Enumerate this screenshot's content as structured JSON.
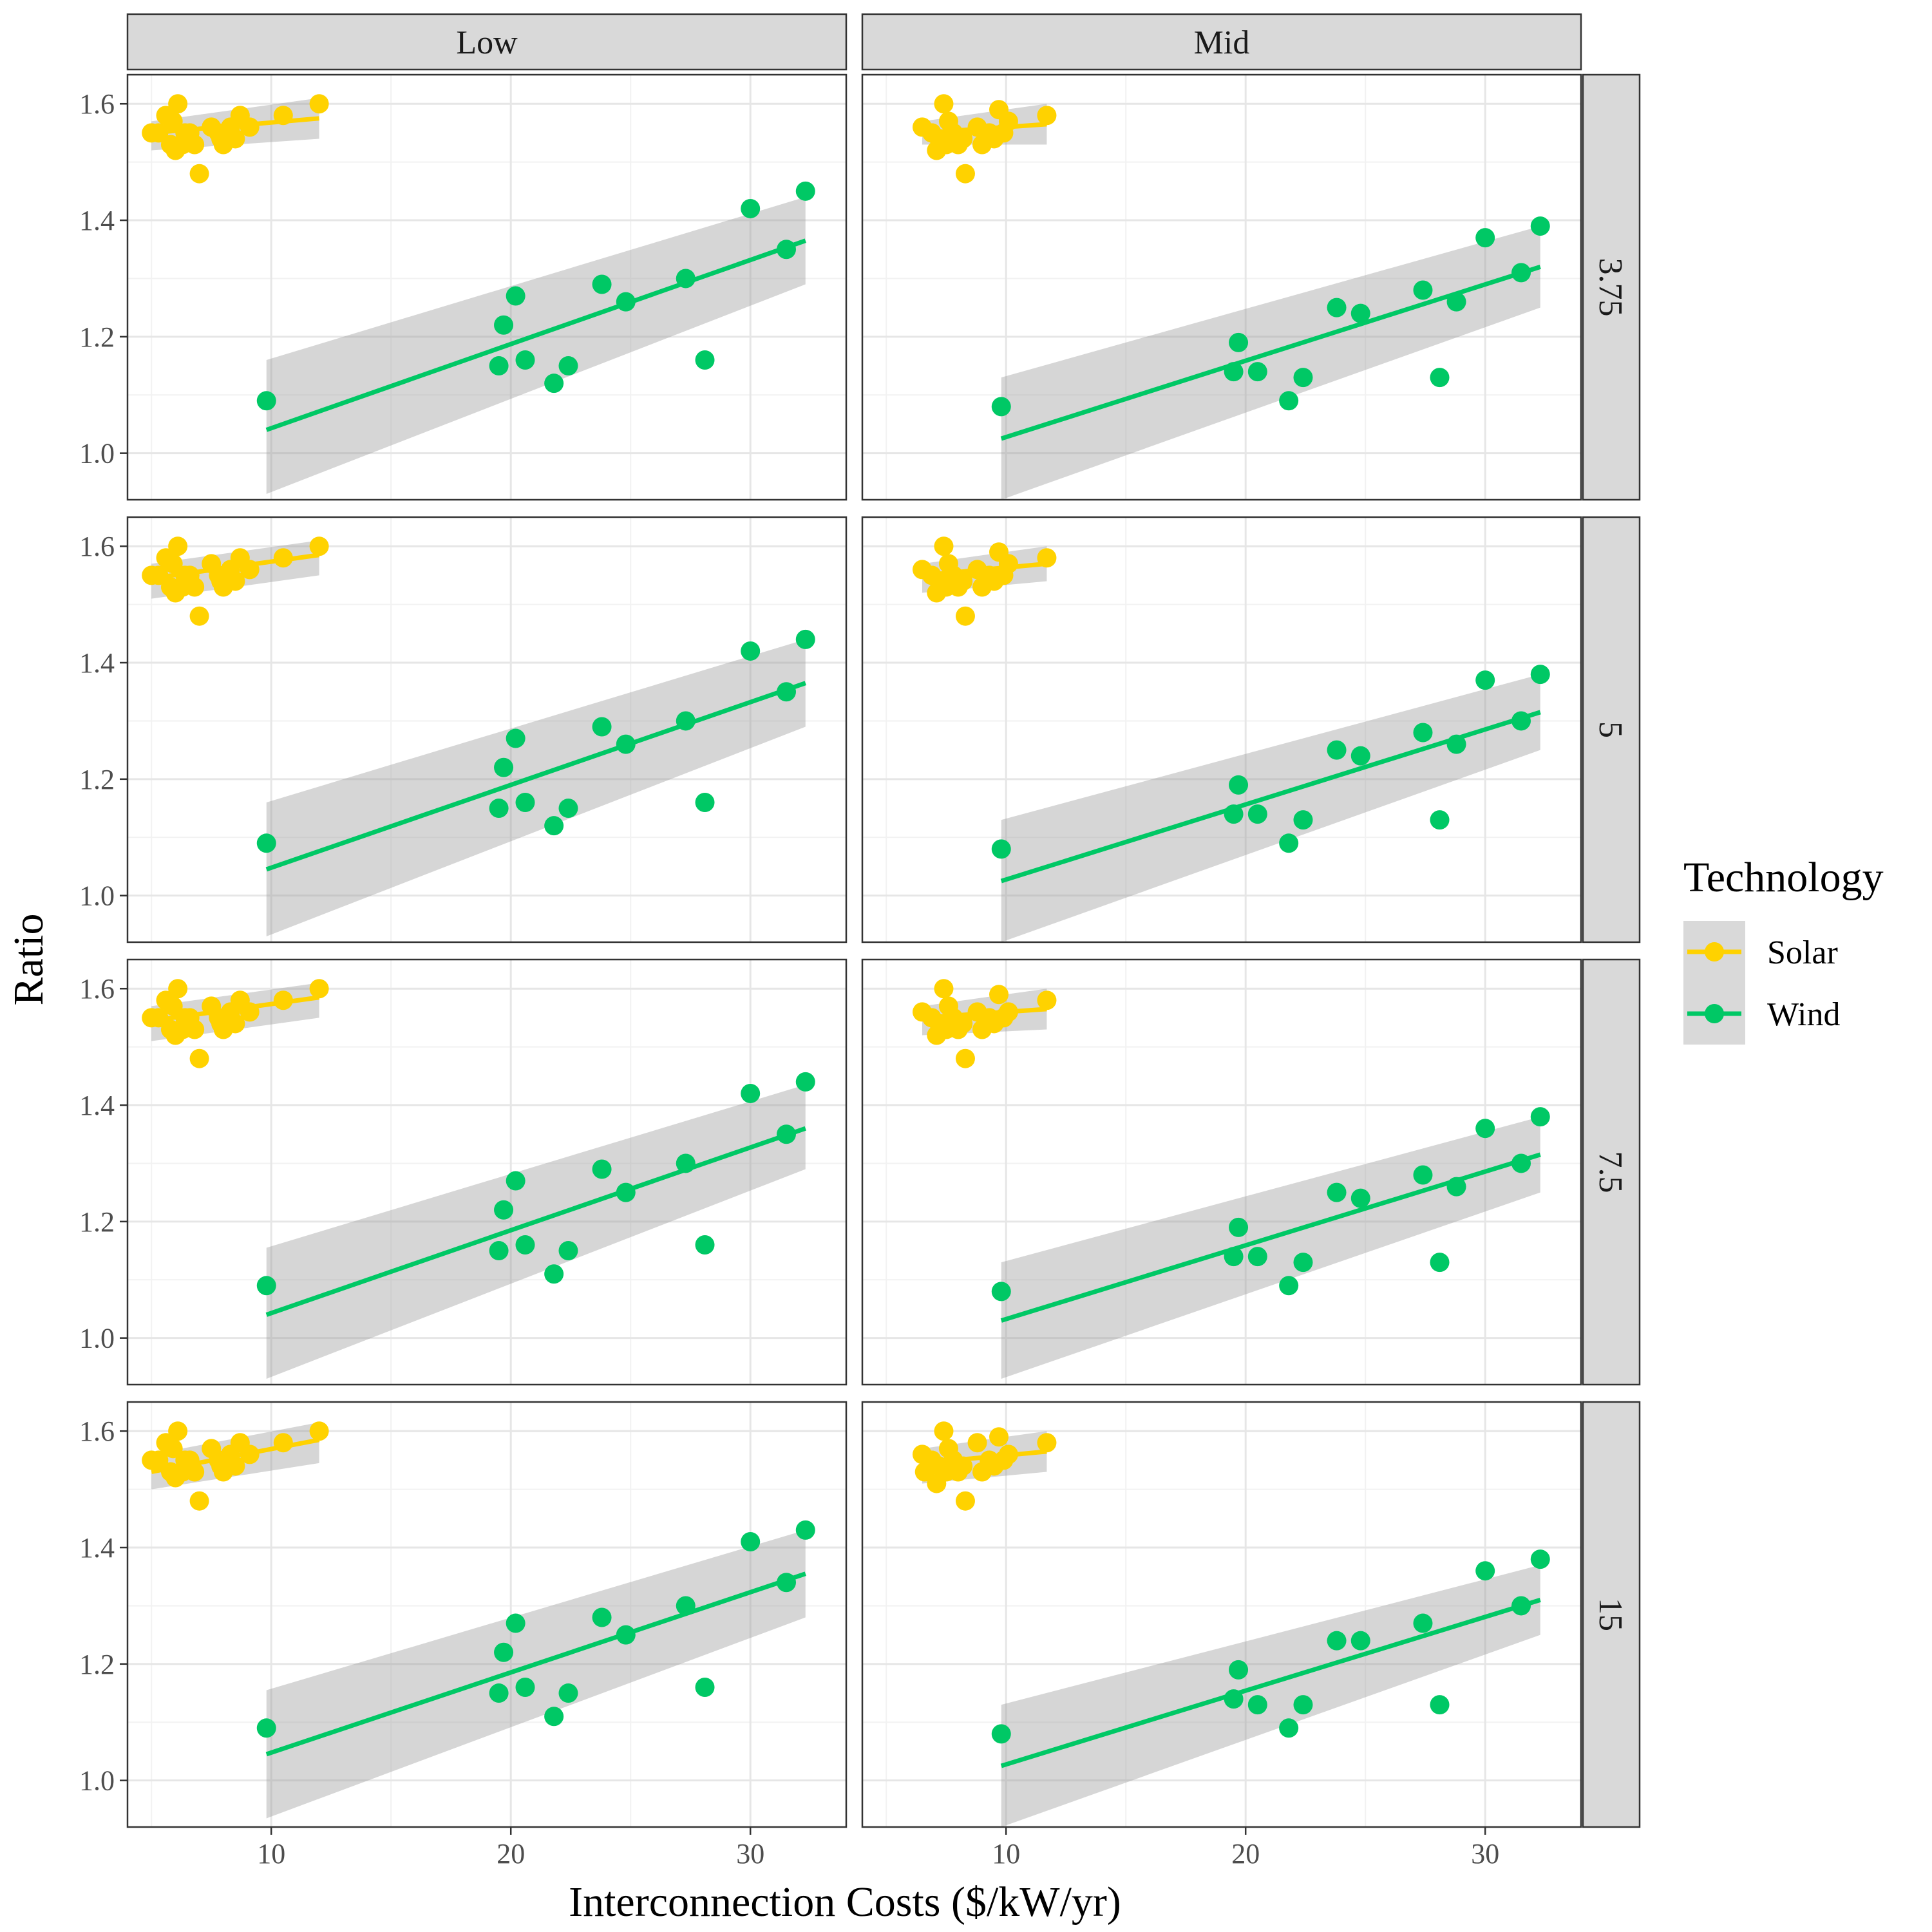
{
  "chart_data": {
    "type": "scatter",
    "xlabel": "Interconnection Costs ($/kW/yr)",
    "ylabel": "Ratio",
    "xlim": [
      4,
      34
    ],
    "ylim": [
      0.92,
      1.65
    ],
    "x_ticks": [
      "10",
      "20",
      "30"
    ],
    "y_ticks": [
      "1.0",
      "1.2",
      "1.4",
      "1.6"
    ],
    "grid": true,
    "legend": {
      "title": "Technology",
      "position": "right",
      "entries": [
        {
          "name": "Solar",
          "color": "#FFD200"
        },
        {
          "name": "Wind",
          "color": "#00C865"
        }
      ]
    },
    "facet_columns": [
      "Low",
      "Mid"
    ],
    "facet_rows": [
      "3.75",
      "5",
      "7.5",
      "15"
    ],
    "panels": [
      {
        "col": "Low",
        "row": "3.75",
        "solar": {
          "x": [
            5.0,
            5.3,
            5.6,
            5.9,
            6.1,
            6.3,
            6.6,
            7.0,
            7.5,
            7.9,
            8.3,
            8.7,
            9.1,
            10.5,
            12.0,
            5.8,
            6.0,
            6.4,
            6.8,
            7.8,
            8.0,
            8.5
          ],
          "y": [
            1.55,
            1.55,
            1.58,
            1.57,
            1.6,
            1.53,
            1.55,
            1.48,
            1.56,
            1.54,
            1.56,
            1.58,
            1.56,
            1.58,
            1.6,
            1.53,
            1.52,
            1.55,
            1.53,
            1.55,
            1.53,
            1.54
          ]
        },
        "solar_fit": {
          "x0": 5.0,
          "y0": 1.55,
          "x1": 12.0,
          "y1": 1.575,
          "ci_lo_start": 1.52,
          "ci_hi_start": 1.57,
          "ci_lo_end": 1.54,
          "ci_hi_end": 1.61
        },
        "wind": {
          "x": [
            9.8,
            19.5,
            19.7,
            20.2,
            20.6,
            21.8,
            22.4,
            23.8,
            24.8,
            27.3,
            28.1,
            30.0,
            31.5,
            32.3
          ],
          "y": [
            1.09,
            1.15,
            1.22,
            1.27,
            1.16,
            1.12,
            1.15,
            1.29,
            1.26,
            1.3,
            1.16,
            1.42,
            1.35,
            1.45
          ]
        },
        "wind_fit": {
          "x0": 9.8,
          "y0": 1.04,
          "x1": 32.3,
          "y1": 1.365,
          "ci_lo_start": 0.93,
          "ci_hi_start": 1.16,
          "ci_lo_end": 1.29,
          "ci_hi_end": 1.44
        }
      },
      {
        "col": "Mid",
        "row": "3.75",
        "solar": {
          "x": [
            6.5,
            6.9,
            7.2,
            7.4,
            7.6,
            7.8,
            8.0,
            8.3,
            8.8,
            9.0,
            9.3,
            9.7,
            10.1,
            11.7,
            7.1,
            7.5,
            8.2,
            9.5,
            9.9
          ],
          "y": [
            1.56,
            1.55,
            1.54,
            1.6,
            1.57,
            1.55,
            1.53,
            1.48,
            1.56,
            1.53,
            1.55,
            1.59,
            1.57,
            1.58,
            1.52,
            1.53,
            1.54,
            1.54,
            1.55
          ]
        },
        "solar_fit": {
          "x0": 6.5,
          "y0": 1.55,
          "x1": 11.7,
          "y1": 1.565,
          "ci_lo_start": 1.53,
          "ci_hi_start": 1.57,
          "ci_lo_end": 1.53,
          "ci_hi_end": 1.6
        },
        "wind": {
          "x": [
            9.8,
            19.5,
            19.7,
            20.5,
            21.8,
            22.4,
            23.8,
            24.8,
            27.4,
            28.1,
            28.8,
            30.0,
            31.5,
            32.3
          ],
          "y": [
            1.08,
            1.14,
            1.19,
            1.14,
            1.09,
            1.13,
            1.25,
            1.24,
            1.28,
            1.13,
            1.26,
            1.37,
            1.31,
            1.39
          ]
        },
        "wind_fit": {
          "x0": 9.8,
          "y0": 1.025,
          "x1": 32.3,
          "y1": 1.32,
          "ci_lo_start": 0.92,
          "ci_hi_start": 1.13,
          "ci_lo_end": 1.25,
          "ci_hi_end": 1.39
        }
      },
      {
        "col": "Low",
        "row": "5",
        "solar": {
          "x": [
            5.0,
            5.3,
            5.6,
            5.9,
            6.1,
            6.3,
            6.6,
            7.0,
            7.5,
            7.9,
            8.3,
            8.7,
            9.1,
            10.5,
            12.0,
            5.8,
            6.0,
            6.4,
            6.8,
            7.8,
            8.0,
            8.5
          ],
          "y": [
            1.55,
            1.55,
            1.58,
            1.57,
            1.6,
            1.53,
            1.55,
            1.48,
            1.57,
            1.54,
            1.56,
            1.58,
            1.56,
            1.58,
            1.6,
            1.53,
            1.52,
            1.55,
            1.53,
            1.55,
            1.53,
            1.54
          ]
        },
        "solar_fit": {
          "x0": 5.0,
          "y0": 1.545,
          "x1": 12.0,
          "y1": 1.585,
          "ci_lo_start": 1.51,
          "ci_hi_start": 1.57,
          "ci_lo_end": 1.55,
          "ci_hi_end": 1.61
        },
        "wind": {
          "x": [
            9.8,
            19.5,
            19.7,
            20.2,
            20.6,
            21.8,
            22.4,
            23.8,
            24.8,
            27.3,
            28.1,
            30.0,
            31.5,
            32.3
          ],
          "y": [
            1.09,
            1.15,
            1.22,
            1.27,
            1.16,
            1.12,
            1.15,
            1.29,
            1.26,
            1.3,
            1.16,
            1.42,
            1.35,
            1.44
          ]
        },
        "wind_fit": {
          "x0": 9.8,
          "y0": 1.045,
          "x1": 32.3,
          "y1": 1.365,
          "ci_lo_start": 0.93,
          "ci_hi_start": 1.16,
          "ci_lo_end": 1.29,
          "ci_hi_end": 1.44
        }
      },
      {
        "col": "Mid",
        "row": "5",
        "solar": {
          "x": [
            6.5,
            6.9,
            7.2,
            7.4,
            7.6,
            7.8,
            8.0,
            8.3,
            8.8,
            9.0,
            9.3,
            9.7,
            10.1,
            11.7,
            7.1,
            7.5,
            8.2,
            9.5,
            9.9
          ],
          "y": [
            1.56,
            1.55,
            1.54,
            1.6,
            1.57,
            1.55,
            1.53,
            1.48,
            1.56,
            1.53,
            1.55,
            1.59,
            1.57,
            1.58,
            1.52,
            1.53,
            1.54,
            1.54,
            1.55
          ]
        },
        "solar_fit": {
          "x0": 6.5,
          "y0": 1.55,
          "x1": 11.7,
          "y1": 1.57,
          "ci_lo_start": 1.52,
          "ci_hi_start": 1.57,
          "ci_lo_end": 1.54,
          "ci_hi_end": 1.6
        },
        "wind": {
          "x": [
            9.8,
            19.5,
            19.7,
            20.5,
            21.8,
            22.4,
            23.8,
            24.8,
            27.4,
            28.1,
            28.8,
            30.0,
            31.5,
            32.3
          ],
          "y": [
            1.08,
            1.14,
            1.19,
            1.14,
            1.09,
            1.13,
            1.25,
            1.24,
            1.28,
            1.13,
            1.26,
            1.37,
            1.3,
            1.38
          ]
        },
        "wind_fit": {
          "x0": 9.8,
          "y0": 1.025,
          "x1": 32.3,
          "y1": 1.315,
          "ci_lo_start": 0.92,
          "ci_hi_start": 1.13,
          "ci_lo_end": 1.25,
          "ci_hi_end": 1.38
        }
      },
      {
        "col": "Low",
        "row": "7.5",
        "solar": {
          "x": [
            5.0,
            5.3,
            5.6,
            5.9,
            6.1,
            6.3,
            6.6,
            7.0,
            7.5,
            7.9,
            8.3,
            8.7,
            9.1,
            10.5,
            12.0,
            5.8,
            6.0,
            6.4,
            6.8,
            7.8,
            8.0,
            8.5
          ],
          "y": [
            1.55,
            1.55,
            1.58,
            1.57,
            1.6,
            1.53,
            1.55,
            1.48,
            1.57,
            1.54,
            1.56,
            1.58,
            1.56,
            1.58,
            1.6,
            1.53,
            1.52,
            1.55,
            1.53,
            1.55,
            1.53,
            1.54
          ]
        },
        "solar_fit": {
          "x0": 5.0,
          "y0": 1.545,
          "x1": 12.0,
          "y1": 1.585,
          "ci_lo_start": 1.51,
          "ci_hi_start": 1.57,
          "ci_lo_end": 1.55,
          "ci_hi_end": 1.61
        },
        "wind": {
          "x": [
            9.8,
            19.5,
            19.7,
            20.2,
            20.6,
            21.8,
            22.4,
            23.8,
            24.8,
            27.3,
            28.1,
            30.0,
            31.5,
            32.3
          ],
          "y": [
            1.09,
            1.15,
            1.22,
            1.27,
            1.16,
            1.11,
            1.15,
            1.29,
            1.25,
            1.3,
            1.16,
            1.42,
            1.35,
            1.44
          ]
        },
        "wind_fit": {
          "x0": 9.8,
          "y0": 1.04,
          "x1": 32.3,
          "y1": 1.36,
          "ci_lo_start": 0.93,
          "ci_hi_start": 1.155,
          "ci_lo_end": 1.29,
          "ci_hi_end": 1.435
        }
      },
      {
        "col": "Mid",
        "row": "7.5",
        "solar": {
          "x": [
            6.5,
            6.9,
            7.2,
            7.4,
            7.6,
            7.8,
            8.0,
            8.3,
            8.8,
            9.0,
            9.3,
            9.7,
            10.1,
            11.7,
            7.1,
            7.5,
            8.2,
            9.5,
            9.9
          ],
          "y": [
            1.56,
            1.55,
            1.54,
            1.6,
            1.57,
            1.55,
            1.53,
            1.48,
            1.56,
            1.53,
            1.55,
            1.59,
            1.56,
            1.58,
            1.52,
            1.53,
            1.54,
            1.54,
            1.55
          ]
        },
        "solar_fit": {
          "x0": 6.5,
          "y0": 1.55,
          "x1": 11.7,
          "y1": 1.565,
          "ci_lo_start": 1.52,
          "ci_hi_start": 1.57,
          "ci_lo_end": 1.53,
          "ci_hi_end": 1.6
        },
        "wind": {
          "x": [
            9.8,
            19.5,
            19.7,
            20.5,
            21.8,
            22.4,
            23.8,
            24.8,
            27.4,
            28.1,
            28.8,
            30.0,
            31.5,
            32.3
          ],
          "y": [
            1.08,
            1.14,
            1.19,
            1.14,
            1.09,
            1.13,
            1.25,
            1.24,
            1.28,
            1.13,
            1.26,
            1.36,
            1.3,
            1.38
          ]
        },
        "wind_fit": {
          "x0": 9.8,
          "y0": 1.03,
          "x1": 32.3,
          "y1": 1.315,
          "ci_lo_start": 0.93,
          "ci_hi_start": 1.13,
          "ci_lo_end": 1.25,
          "ci_hi_end": 1.38
        }
      },
      {
        "col": "Low",
        "row": "15",
        "solar": {
          "x": [
            5.0,
            5.3,
            5.6,
            5.9,
            6.1,
            6.3,
            6.6,
            7.0,
            7.5,
            7.9,
            8.3,
            8.7,
            9.1,
            10.5,
            12.0,
            5.8,
            6.0,
            6.4,
            6.8,
            7.8,
            8.0,
            8.5
          ],
          "y": [
            1.55,
            1.55,
            1.58,
            1.57,
            1.6,
            1.53,
            1.55,
            1.48,
            1.57,
            1.54,
            1.56,
            1.58,
            1.56,
            1.58,
            1.6,
            1.53,
            1.52,
            1.55,
            1.53,
            1.55,
            1.53,
            1.54
          ]
        },
        "solar_fit": {
          "x0": 5.0,
          "y0": 1.53,
          "x1": 12.0,
          "y1": 1.585,
          "ci_lo_start": 1.5,
          "ci_hi_start": 1.56,
          "ci_lo_end": 1.545,
          "ci_hi_end": 1.615
        },
        "wind": {
          "x": [
            9.8,
            19.5,
            19.7,
            20.2,
            20.6,
            21.8,
            22.4,
            23.8,
            24.8,
            27.3,
            28.1,
            30.0,
            31.5,
            32.3
          ],
          "y": [
            1.09,
            1.15,
            1.22,
            1.27,
            1.16,
            1.11,
            1.15,
            1.28,
            1.25,
            1.3,
            1.16,
            1.41,
            1.34,
            1.43
          ]
        },
        "wind_fit": {
          "x0": 9.8,
          "y0": 1.045,
          "x1": 32.3,
          "y1": 1.355,
          "ci_lo_start": 0.935,
          "ci_hi_start": 1.155,
          "ci_lo_end": 1.28,
          "ci_hi_end": 1.43
        }
      },
      {
        "col": "Mid",
        "row": "15",
        "solar": {
          "x": [
            6.5,
            6.9,
            7.2,
            7.4,
            7.6,
            7.8,
            8.0,
            8.3,
            8.8,
            9.0,
            9.3,
            9.7,
            10.1,
            11.7,
            7.1,
            7.5,
            8.2,
            9.5,
            9.9,
            6.6
          ],
          "y": [
            1.56,
            1.55,
            1.54,
            1.6,
            1.57,
            1.55,
            1.53,
            1.48,
            1.58,
            1.53,
            1.55,
            1.59,
            1.56,
            1.58,
            1.51,
            1.53,
            1.54,
            1.54,
            1.55,
            1.53
          ]
        },
        "solar_fit": {
          "x0": 6.5,
          "y0": 1.545,
          "x1": 11.7,
          "y1": 1.565,
          "ci_lo_start": 1.51,
          "ci_hi_start": 1.57,
          "ci_lo_end": 1.53,
          "ci_hi_end": 1.6
        },
        "wind": {
          "x": [
            9.8,
            19.5,
            19.7,
            20.5,
            21.8,
            22.4,
            23.8,
            24.8,
            27.4,
            28.1,
            30.0,
            31.5,
            32.3
          ],
          "y": [
            1.08,
            1.14,
            1.19,
            1.13,
            1.09,
            1.13,
            1.24,
            1.24,
            1.27,
            1.13,
            1.36,
            1.3,
            1.38
          ]
        },
        "wind_fit": {
          "x0": 9.8,
          "y0": 1.025,
          "x1": 32.3,
          "y1": 1.31,
          "ci_lo_start": 0.92,
          "ci_hi_start": 1.13,
          "ci_lo_end": 1.25,
          "ci_hi_end": 1.37
        }
      }
    ]
  }
}
